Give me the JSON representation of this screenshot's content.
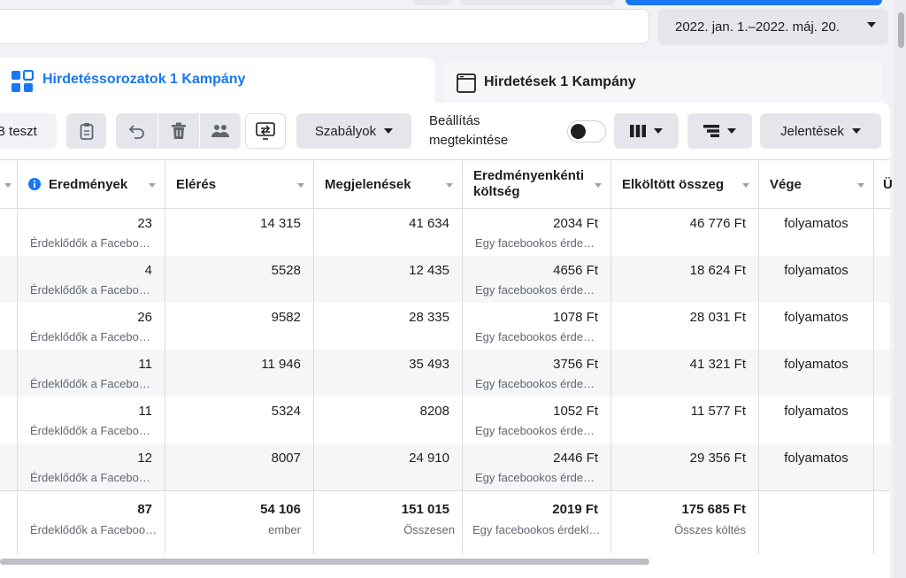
{
  "date_range": {
    "label": "2022. jan. 1.–2022. máj. 20."
  },
  "tabs": [
    {
      "label": "Hirdetéssorozatok 1 Kampány",
      "icon": "adsets-grid-icon",
      "active": true
    },
    {
      "label": "Hirdetések 1 Kampány",
      "icon": "ad-window-icon",
      "active": false
    }
  ],
  "toolbar": {
    "ab_test_label": "B teszt",
    "rules_label": "Szabályok",
    "preview_label_line1": "Beállítás",
    "preview_label_line2": "megtekintése",
    "preview_toggle": "off",
    "reports_label": "Jelentések"
  },
  "table": {
    "columns": [
      "Eredmények",
      "Elérés",
      "Megjelenések",
      "Eredményenkénti költség",
      "Elköltött összeg",
      "Vége"
    ],
    "column_cost_line1": "Eredményenkénti",
    "column_cost_line2": "költség",
    "partial_next_column": "Ü",
    "rows": [
      {
        "results": "23",
        "results_sub": "Érdeklődők a Facebo…",
        "reach": "14 315",
        "impressions": "41 634",
        "cost": "2034 Ft",
        "cost_sub": "Egy facebookos érde…",
        "spent": "46 776 Ft",
        "end": "folyamatos"
      },
      {
        "results": "4",
        "results_sub": "Érdeklődők a Facebo…",
        "reach": "5528",
        "impressions": "12 435",
        "cost": "4656 Ft",
        "cost_sub": "Egy facebookos érde…",
        "spent": "18 624 Ft",
        "end": "folyamatos"
      },
      {
        "results": "26",
        "results_sub": "Érdeklődők a Facebo…",
        "reach": "9582",
        "impressions": "28 335",
        "cost": "1078 Ft",
        "cost_sub": "Egy facebookos érde…",
        "spent": "28 031 Ft",
        "end": "folyamatos"
      },
      {
        "results": "11",
        "results_sub": "Érdeklődők a Facebo…",
        "reach": "11 946",
        "impressions": "35 493",
        "cost": "3756 Ft",
        "cost_sub": "Egy facebookos érde…",
        "spent": "41 321 Ft",
        "end": "folyamatos"
      },
      {
        "results": "11",
        "results_sub": "Érdeklődők a Facebo…",
        "reach": "5324",
        "impressions": "8208",
        "cost": "1052 Ft",
        "cost_sub": "Egy facebookos érde…",
        "spent": "11 577 Ft",
        "end": "folyamatos"
      },
      {
        "results": "12",
        "results_sub": "Érdeklődők a Facebo…",
        "reach": "8007",
        "impressions": "24 910",
        "cost": "2446 Ft",
        "cost_sub": "Egy facebookos érde…",
        "spent": "29 356 Ft",
        "end": "folyamatos"
      }
    ],
    "totals": {
      "results": "87",
      "results_sub": "Érdeklődők a Faceboo…",
      "reach": "54 106",
      "reach_sub": "ember",
      "impressions": "151 015",
      "impressions_sub": "Összesen",
      "cost": "2019 Ft",
      "cost_sub": "Egy facebookos érdekl…",
      "spent": "175 685 Ft",
      "spent_sub": "Összes költés"
    }
  }
}
